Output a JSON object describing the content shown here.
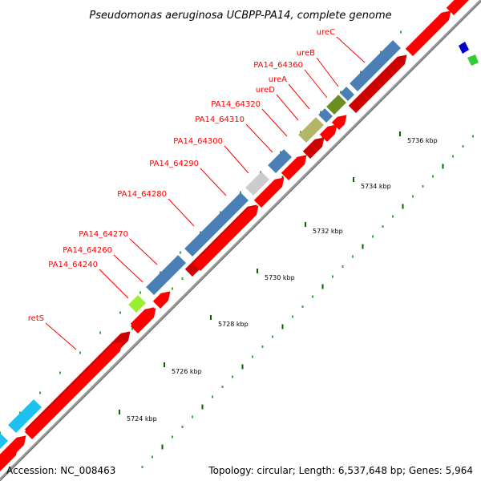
{
  "title": "Pseudomonas aeruginosa UCBPP-PA14, complete genome",
  "footer": {
    "accession": "Accession: NC_008463",
    "summary": "Topology: circular; Length: 6,537,648 bp; Genes: 5,964"
  },
  "ticks": [
    {
      "label": "5724 kbp"
    },
    {
      "label": "5726 kbp"
    },
    {
      "label": "5728 kbp"
    },
    {
      "label": "5730 kbp"
    },
    {
      "label": "5732 kbp"
    },
    {
      "label": "5734 kbp"
    },
    {
      "label": "5736 kbp"
    }
  ],
  "genes": [
    {
      "name": "retS"
    },
    {
      "name": "PA14_64240"
    },
    {
      "name": "PA14_64260"
    },
    {
      "name": "PA14_64270"
    },
    {
      "name": "PA14_64280"
    },
    {
      "name": "PA14_64290"
    },
    {
      "name": "PA14_64300"
    },
    {
      "name": "PA14_64310"
    },
    {
      "name": "PA14_64320"
    },
    {
      "name": "ureD"
    },
    {
      "name": "ureA"
    },
    {
      "name": "PA14_64360"
    },
    {
      "name": "ureB"
    },
    {
      "name": "ureC"
    }
  ],
  "colors": {
    "cds": "#ff0000",
    "cds_dark": "#cc0000",
    "feature_blue": "#4a7fb5",
    "feature_cyan": "#1ec0f0",
    "feature_grey": "#cccccc",
    "feature_olive": "#b5b56a",
    "feature_green": "#6b8e23",
    "feature_lime": "#99ee33",
    "backbone": "#999999",
    "tick_dark": "#006600",
    "tick_light": "#33aa33",
    "label": "#ff0000",
    "marker_blue": "#0000cc",
    "marker_green": "#33cc33"
  }
}
